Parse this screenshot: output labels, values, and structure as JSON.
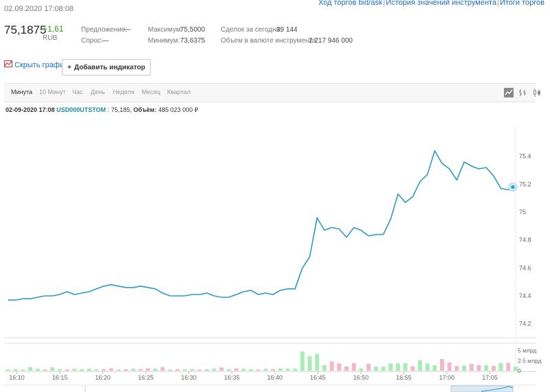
{
  "header": {
    "timestamp": "02.09.2020 17:08:08",
    "links": [
      "Ход торгов bid/ask",
      "История значений инструмента",
      "Итоги торгов"
    ]
  },
  "quote": {
    "price": "75,1875",
    "change": "+1,61",
    "currency": "RUB",
    "offer_label": "Предложение:",
    "offer_value": "—",
    "bid_label": "Спрос:",
    "bid_value": "—",
    "max_label": "Максимум:",
    "max_value": "75,5000",
    "min_label": "Минимум:",
    "min_value": "73,6375",
    "trades_label": "Сделок за сегодня:",
    "trades_value": "39 144",
    "volume_label": "Объем в валюте инструмента:",
    "volume_value": "2 217 946 000"
  },
  "toolbar": {
    "hide_chart": "Скрыть график",
    "add_indicator": "Добавить индикатор"
  },
  "tabs": [
    "Минута",
    "10 Минут",
    "Час",
    "День",
    "Неделя",
    "Месяц",
    "Квартал"
  ],
  "active_tab": "Минута",
  "info": {
    "date": "02-09-2020 17:08",
    "symbol": "USD000UTSTOM",
    "price": "75,185",
    "volume_label": "Объём:",
    "volume": "485 023 000 ₽"
  },
  "colors": {
    "line": "#2a9ac8",
    "vol_up": "#a8ecb4",
    "vol_down": "#f5b6cb",
    "accent": "#1a6ec8",
    "positive": "#3a9a1a"
  },
  "chart_data": {
    "type": "line",
    "series": [
      {
        "values": [
          74.37,
          74.37,
          74.38,
          74.38,
          74.39,
          74.4,
          74.4,
          74.41,
          74.43,
          74.41,
          74.42,
          74.43,
          74.45,
          74.47,
          74.48,
          74.47,
          74.46,
          74.46,
          74.47,
          74.46,
          74.45,
          74.42,
          74.4,
          74.4,
          74.4,
          74.41,
          74.41,
          74.42,
          74.4,
          74.39,
          74.39,
          74.41,
          74.43,
          74.44,
          74.41,
          74.42,
          74.41,
          74.44,
          74.45,
          74.45,
          74.6,
          74.68,
          74.96,
          74.87,
          74.89,
          74.88,
          74.82,
          74.89,
          74.87,
          74.83,
          74.84,
          74.84,
          74.95,
          75.13,
          75.07,
          75.11,
          75.22,
          75.27,
          75.44,
          75.35,
          75.31,
          75.23,
          75.36,
          75.33,
          75.31,
          75.32,
          75.26,
          75.17,
          75.16,
          75.18
        ]
      }
    ],
    "volume": {
      "values": [
        0.3,
        0.4,
        0.3,
        0.9,
        0.5,
        0.3,
        0.8,
        0.4,
        0.3,
        0.5,
        0.4,
        0.5,
        0.3,
        0.4,
        0.6,
        0.3,
        0.4,
        0.5,
        0.4,
        0.6,
        0.5,
        0.9,
        0.3,
        0.4,
        0.3,
        0.4,
        0.3,
        0.4,
        0.5,
        0.8,
        0.4,
        0.6,
        0.5,
        0.4,
        0.3,
        0.5,
        0.4,
        0.6,
        0.5,
        0.5,
        4.8,
        3.6,
        4.2,
        1.4,
        2.3,
        1.8,
        1.1,
        1.9,
        0.6,
        1.7,
        1.0,
        1.0,
        1.8,
        1.8,
        1.9,
        1.1,
        2.6,
        1.8,
        1.4,
        2.9,
        2.1,
        1.2,
        1.3,
        1.7,
        1.4,
        1.4,
        1.2,
        1.9,
        2.0,
        1.0
      ],
      "up": [
        true,
        true,
        true,
        true,
        true,
        false,
        true,
        true,
        false,
        true,
        true,
        true,
        true,
        false,
        false,
        true,
        false,
        true,
        false,
        false,
        true,
        false,
        true,
        false,
        true,
        true,
        false,
        true,
        true,
        false,
        true,
        false,
        true,
        true,
        false,
        true,
        false,
        true,
        true,
        true,
        true,
        true,
        true,
        true,
        false,
        false,
        false,
        false,
        true,
        false,
        true,
        true,
        true,
        true,
        true,
        false,
        true,
        true,
        true,
        false,
        false,
        false,
        true,
        false,
        false,
        true,
        false,
        true,
        false,
        true
      ],
      "yticks": [
        "5 млрд",
        "2.5 млрд",
        "0"
      ],
      "ylim": [
        0,
        5.8
      ]
    },
    "xticks": [
      "16:10",
      "16:15",
      "16:20",
      "16:25",
      "16:30",
      "16:35",
      "16:40",
      "16:45",
      "16:50",
      "16:55",
      "17:00",
      "17:05"
    ],
    "x_start": "16:09",
    "x_end": "17:08",
    "yticks": [
      "75.4",
      "75.2",
      "75",
      "74.8",
      "74.6",
      "74.4",
      "74.2"
    ],
    "ylim": [
      74.1,
      75.62
    ]
  }
}
